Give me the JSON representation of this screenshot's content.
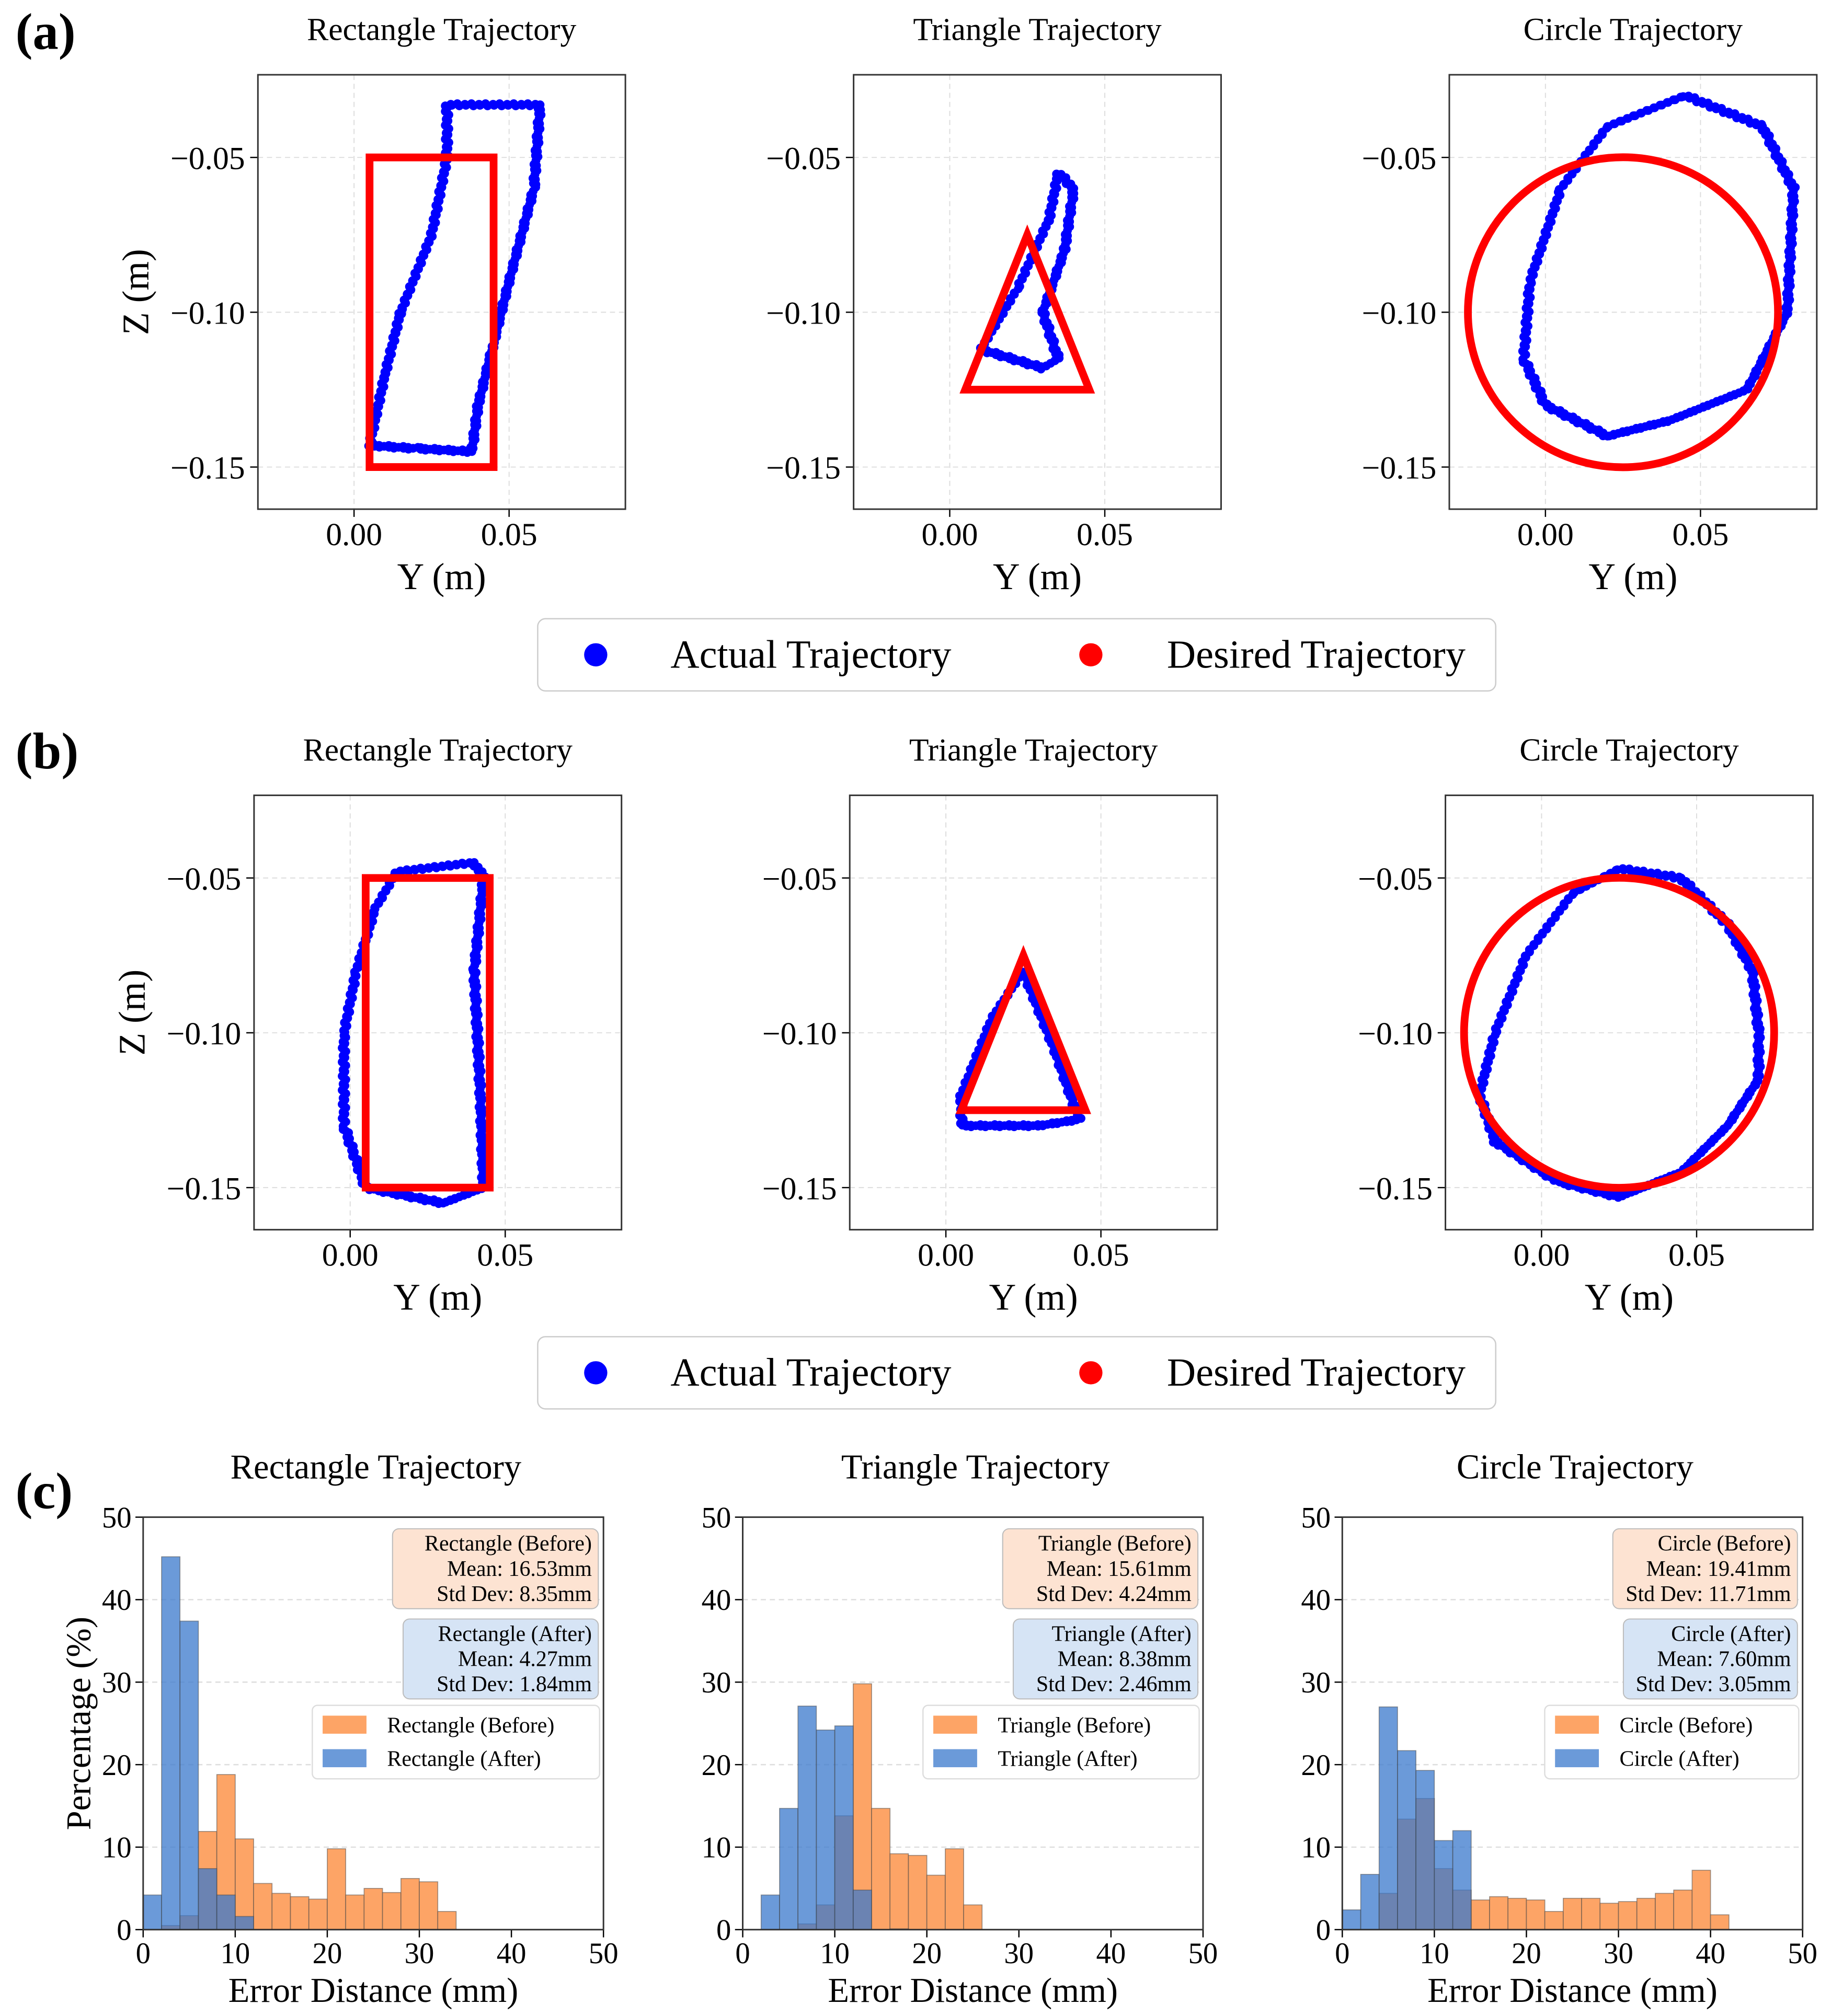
{
  "panel_labels": [
    "(a)",
    "(b)",
    "(c)"
  ],
  "colors": {
    "actual": "#0000ff",
    "desired": "#ff0000",
    "before": "#fda466",
    "after": "#3a78cc",
    "before_box": "#fde3d2",
    "after_box": "#d6e4f5"
  },
  "chart_data": [
    {
      "type": "scatter",
      "row": "a",
      "xlabel": "Y (m)",
      "ylabel": "Z (m)",
      "xlim": [
        -0.031,
        0.0875
      ],
      "ylim": [
        -0.1636,
        -0.0233
      ],
      "xticks": [
        0.0,
        0.05
      ],
      "xtick_labels": [
        "0.00",
        "0.05"
      ],
      "yticks": [
        -0.05,
        -0.1,
        -0.15
      ],
      "ytick_labels": [
        "−0.05",
        "−0.10",
        "−0.15"
      ],
      "legend": [
        "Actual Trajectory",
        "Desired Trajectory"
      ],
      "panels": [
        {
          "title": "Rectangle Trajectory",
          "desired": {
            "shape": "polygon",
            "points": [
              [
                0.005,
                -0.05
              ],
              [
                0.045,
                -0.05
              ],
              [
                0.045,
                -0.15
              ],
              [
                0.005,
                -0.15
              ]
            ]
          },
          "actual": [
            [
              0.03,
              -0.033
            ],
            [
              0.06,
              -0.033
            ],
            [
              0.058,
              -0.06
            ],
            [
              0.05,
              -0.09
            ],
            [
              0.045,
              -0.11
            ],
            [
              0.04,
              -0.13
            ],
            [
              0.038,
              -0.145
            ],
            [
              0.02,
              -0.144
            ],
            [
              0.005,
              -0.143
            ],
            [
              0.01,
              -0.12
            ],
            [
              0.015,
              -0.1
            ],
            [
              0.025,
              -0.075
            ],
            [
              0.03,
              -0.05
            ],
            [
              0.03,
              -0.033
            ]
          ]
        },
        {
          "title": "Triangle Trajectory",
          "desired": {
            "shape": "polygon",
            "points": [
              [
                0.025,
                -0.075
              ],
              [
                0.045,
                -0.125
              ],
              [
                0.005,
                -0.125
              ]
            ]
          },
          "actual": [
            [
              0.035,
              -0.055
            ],
            [
              0.04,
              -0.06
            ],
            [
              0.037,
              -0.08
            ],
            [
              0.03,
              -0.1
            ],
            [
              0.035,
              -0.115
            ],
            [
              0.03,
              -0.118
            ],
            [
              0.01,
              -0.112
            ],
            [
              0.022,
              -0.092
            ],
            [
              0.032,
              -0.07
            ],
            [
              0.035,
              -0.055
            ]
          ]
        },
        {
          "title": "Circle Trajectory",
          "desired": {
            "shape": "circle",
            "center": [
              0.025,
              -0.1
            ],
            "radius": 0.05
          },
          "actual": [
            [
              0.045,
              -0.03
            ],
            [
              0.07,
              -0.04
            ],
            [
              0.08,
              -0.06
            ],
            [
              0.078,
              -0.1
            ],
            [
              0.065,
              -0.125
            ],
            [
              0.04,
              -0.135
            ],
            [
              0.02,
              -0.14
            ],
            [
              0.0,
              -0.13
            ],
            [
              -0.007,
              -0.115
            ],
            [
              -0.005,
              -0.09
            ],
            [
              0.005,
              -0.06
            ],
            [
              0.02,
              -0.04
            ],
            [
              0.045,
              -0.03
            ]
          ]
        }
      ]
    },
    {
      "type": "scatter",
      "row": "b",
      "xlabel": "Y (m)",
      "ylabel": "Z (m)",
      "xlim": [
        -0.031,
        0.0875
      ],
      "ylim": [
        -0.1636,
        -0.0233
      ],
      "xticks": [
        0.0,
        0.05
      ],
      "xtick_labels": [
        "0.00",
        "0.05"
      ],
      "yticks": [
        -0.05,
        -0.1,
        -0.15
      ],
      "ytick_labels": [
        "−0.05",
        "−0.10",
        "−0.15"
      ],
      "legend": [
        "Actual Trajectory",
        "Desired Trajectory"
      ],
      "panels": [
        {
          "title": "Rectangle Trajectory",
          "desired": {
            "shape": "polygon",
            "points": [
              [
                0.005,
                -0.05
              ],
              [
                0.045,
                -0.05
              ],
              [
                0.045,
                -0.15
              ],
              [
                0.005,
                -0.15
              ]
            ]
          },
          "actual": [
            [
              0.015,
              -0.048
            ],
            [
              0.04,
              -0.045
            ],
            [
              0.043,
              -0.05
            ],
            [
              0.04,
              -0.08
            ],
            [
              0.042,
              -0.12
            ],
            [
              0.043,
              -0.15
            ],
            [
              0.03,
              -0.155
            ],
            [
              0.005,
              -0.15
            ],
            [
              -0.002,
              -0.13
            ],
            [
              -0.002,
              -0.1
            ],
            [
              0.002,
              -0.08
            ],
            [
              0.008,
              -0.06
            ],
            [
              0.015,
              -0.048
            ]
          ]
        },
        {
          "title": "Triangle Trajectory",
          "desired": {
            "shape": "polygon",
            "points": [
              [
                0.025,
                -0.075
              ],
              [
                0.045,
                -0.125
              ],
              [
                0.005,
                -0.125
              ]
            ]
          },
          "actual": [
            [
              0.025,
              -0.08
            ],
            [
              0.035,
              -0.105
            ],
            [
              0.043,
              -0.128
            ],
            [
              0.03,
              -0.13
            ],
            [
              0.005,
              -0.13
            ],
            [
              0.005,
              -0.12
            ],
            [
              0.015,
              -0.095
            ],
            [
              0.025,
              -0.08
            ]
          ]
        },
        {
          "title": "Circle Trajectory",
          "desired": {
            "shape": "circle",
            "center": [
              0.025,
              -0.1
            ],
            "radius": 0.05
          },
          "actual": [
            [
              0.025,
              -0.047
            ],
            [
              0.045,
              -0.05
            ],
            [
              0.06,
              -0.065
            ],
            [
              0.068,
              -0.08
            ],
            [
              0.07,
              -0.1
            ],
            [
              0.07,
              -0.115
            ],
            [
              0.06,
              -0.13
            ],
            [
              0.045,
              -0.145
            ],
            [
              0.025,
              -0.153
            ],
            [
              0.005,
              -0.148
            ],
            [
              -0.015,
              -0.135
            ],
            [
              -0.02,
              -0.12
            ],
            [
              -0.015,
              -0.1
            ],
            [
              -0.005,
              -0.075
            ],
            [
              0.01,
              -0.055
            ],
            [
              0.025,
              -0.047
            ]
          ]
        }
      ]
    },
    {
      "type": "bar",
      "row": "c",
      "xlabel": "Error Distance (mm)",
      "ylabel": "Percentage (%)",
      "xlim": [
        0,
        50
      ],
      "ylim": [
        0,
        50
      ],
      "bin_width": 2,
      "xticks": [
        0,
        10,
        20,
        30,
        40,
        50
      ],
      "yticks": [
        0,
        10,
        20,
        30,
        40,
        50
      ],
      "panels": [
        {
          "title": "Rectangle Trajectory",
          "before": {
            "label": "Rectangle (Before)",
            "stats": [
              "Rectangle (Before)",
              "Mean: 16.53mm",
              "Std Dev: 8.35mm"
            ],
            "bin_start": 2,
            "values": [
              0.5,
              1.7,
              11.9,
              18.8,
              11.0,
              5.6,
              4.4,
              4.0,
              3.7,
              9.8,
              4.2,
              5.0,
              4.5,
              6.2,
              5.8,
              2.2
            ]
          },
          "after": {
            "label": "Rectangle (After)",
            "stats": [
              "Rectangle (After)",
              "Mean: 4.27mm",
              "Std Dev: 1.84mm"
            ],
            "bin_start": 0,
            "values": [
              4.2,
              45.2,
              37.4,
              7.4,
              4.2,
              1.6
            ]
          }
        },
        {
          "title": "Triangle Trajectory",
          "before": {
            "label": "Triangle (Before)",
            "stats": [
              "Triangle (Before)",
              "Mean: 15.61mm",
              "Std Dev: 4.24mm"
            ],
            "bin_start": 6,
            "values": [
              0.7,
              3.0,
              13.8,
              29.8,
              14.7,
              9.2,
              9.0,
              6.6,
              9.8,
              3.0
            ]
          },
          "after": {
            "label": "Triangle (After)",
            "stats": [
              "Triangle (After)",
              "Mean: 8.38mm",
              "Std Dev: 2.46mm"
            ],
            "bin_start": 2,
            "values": [
              4.2,
              14.7,
              27.1,
              24.2,
              24.7,
              4.8,
              0,
              0.1
            ]
          }
        },
        {
          "title": "Circle Trajectory",
          "before": {
            "label": "Circle (Before)",
            "stats": [
              "Circle (Before)",
              "Mean: 19.41mm",
              "Std Dev: 11.71mm"
            ],
            "bin_start": 4,
            "values": [
              4.4,
              13.4,
              15.9,
              7.4,
              4.8,
              3.6,
              4.0,
              3.8,
              3.6,
              2.2,
              3.8,
              3.8,
              3.2,
              3.4,
              3.8,
              4.4,
              4.8,
              7.2,
              1.8
            ]
          },
          "after": {
            "label": "Circle (After)",
            "stats": [
              "Circle (After)",
              "Mean: 7.60mm",
              "Std Dev: 3.05mm"
            ],
            "bin_start": 0,
            "values": [
              2.4,
              6.7,
              27.0,
              21.7,
              19.3,
              10.8,
              12.0
            ]
          }
        }
      ]
    }
  ]
}
